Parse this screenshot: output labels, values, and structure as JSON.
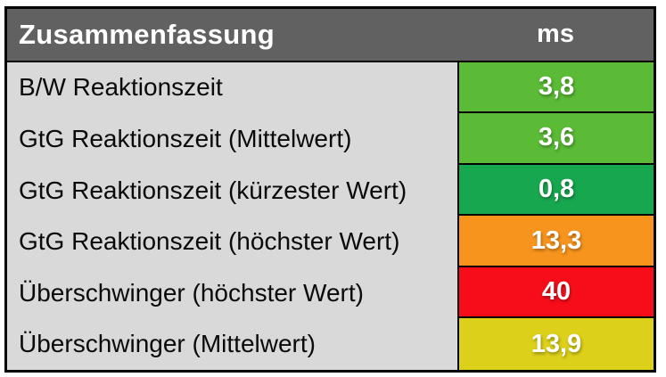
{
  "table": {
    "title": "Zusammenfassung",
    "unit_header": "ms",
    "rows": [
      {
        "label": "B/W Reaktionszeit",
        "value": "3,8",
        "cell_color": "#5bbb36",
        "status": "good"
      },
      {
        "label": "GtG Reaktionszeit (Mittelwert)",
        "value": "3,6",
        "cell_color": "#5bbb36",
        "status": "good"
      },
      {
        "label": "GtG Reaktionszeit (kürzester Wert)",
        "value": "0,8",
        "cell_color": "#17a74e",
        "status": "very-good"
      },
      {
        "label": "GtG Reaktionszeit (höchster Wert)",
        "value": "13,3",
        "cell_color": "#f7941d",
        "status": "mediocre"
      },
      {
        "label": "Überschwinger (höchster Wert)",
        "value": "40",
        "cell_color": "#f70d1a",
        "status": "bad"
      },
      {
        "label": "Überschwinger (Mittelwert)",
        "value": "13,9",
        "cell_color": "#dcd01a",
        "status": "ok"
      }
    ],
    "colors": {
      "header_bg": "#616161",
      "header_text": "#ffffff",
      "label_bg": "#d9d9d9",
      "label_text": "#0a0a0a",
      "value_text": "#ffffff",
      "border": "#000000"
    }
  },
  "chart_data": {
    "type": "table",
    "title": "Zusammenfassung",
    "unit": "ms",
    "categories": [
      "B/W Reaktionszeit",
      "GtG Reaktionszeit (Mittelwert)",
      "GtG Reaktionszeit (kürzester Wert)",
      "GtG Reaktionszeit (höchster Wert)",
      "Überschwinger (höchster Wert)",
      "Überschwinger (Mittelwert)"
    ],
    "values": [
      3.8,
      3.6,
      0.8,
      13.3,
      40,
      13.9
    ],
    "value_labels": [
      "3,8",
      "3,6",
      "0,8",
      "13,3",
      "40",
      "13,9"
    ],
    "cell_colors": [
      "#5bbb36",
      "#5bbb36",
      "#17a74e",
      "#f7941d",
      "#f70d1a",
      "#dcd01a"
    ]
  }
}
